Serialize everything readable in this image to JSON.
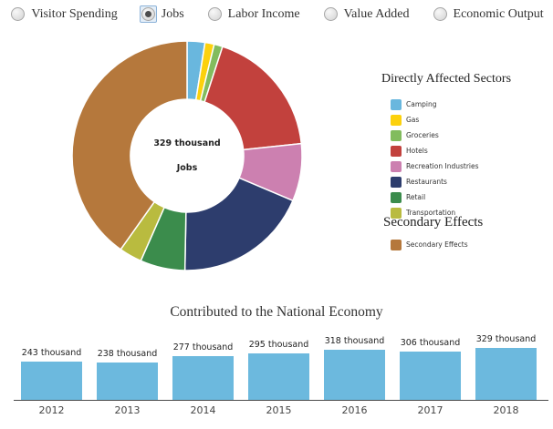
{
  "controls": {
    "focus_color": "#8db3d8",
    "options": [
      {
        "label": "Visitor Spending",
        "selected": false
      },
      {
        "label": "Jobs",
        "selected": true
      },
      {
        "label": "Labor Income",
        "selected": false
      },
      {
        "label": "Value Added",
        "selected": false
      },
      {
        "label": "Economic Output",
        "selected": false
      }
    ]
  },
  "donut_center": {
    "line1": "329 thousand",
    "line2": "Jobs"
  },
  "legend": {
    "primary_header": "Directly Affected Sectors",
    "secondary_header": "Secondary Effects"
  },
  "chart_data": [
    {
      "type": "pie",
      "subtype": "donut",
      "title": "Jobs",
      "center_label": "329 thousand Jobs",
      "total_value": 329,
      "unit": "thousand jobs",
      "legend_position": "right",
      "series": [
        {
          "name": "Camping",
          "color": "#69b7de",
          "share_pct": 2.5,
          "group": "Directly Affected Sectors"
        },
        {
          "name": "Gas",
          "color": "#fcd10d",
          "share_pct": 1.3,
          "group": "Directly Affected Sectors"
        },
        {
          "name": "Groceries",
          "color": "#82bc5e",
          "share_pct": 1.2,
          "group": "Directly Affected Sectors"
        },
        {
          "name": "Hotels",
          "color": "#c2413d",
          "share_pct": 18.3,
          "group": "Directly Affected Sectors"
        },
        {
          "name": "Recreation Industries",
          "color": "#cc80b0",
          "share_pct": 8.1,
          "group": "Directly Affected Sectors"
        },
        {
          "name": "Restaurants",
          "color": "#2d3d6d",
          "share_pct": 18.9,
          "group": "Directly Affected Sectors"
        },
        {
          "name": "Retail",
          "color": "#3b8c4c",
          "share_pct": 6.3,
          "group": "Directly Affected Sectors"
        },
        {
          "name": "Transportation",
          "color": "#b9bb3f",
          "share_pct": 3.2,
          "group": "Directly Affected Sectors"
        },
        {
          "name": "Secondary Effects",
          "color": "#b5783c",
          "share_pct": 40.2,
          "group": "Secondary Effects"
        }
      ]
    },
    {
      "type": "bar",
      "title": "Contributed to the National Economy",
      "categories": [
        "2012",
        "2013",
        "2014",
        "2015",
        "2016",
        "2017",
        "2018"
      ],
      "values": [
        243,
        238,
        277,
        295,
        318,
        306,
        329
      ],
      "value_labels": [
        "243 thousand",
        "238 thousand",
        "277 thousand",
        "295 thousand",
        "318 thousand",
        "306 thousand",
        "329 thousand"
      ],
      "unit": "thousand",
      "bar_color": "#6cb9de",
      "grid": false,
      "legend_position": "none"
    }
  ]
}
